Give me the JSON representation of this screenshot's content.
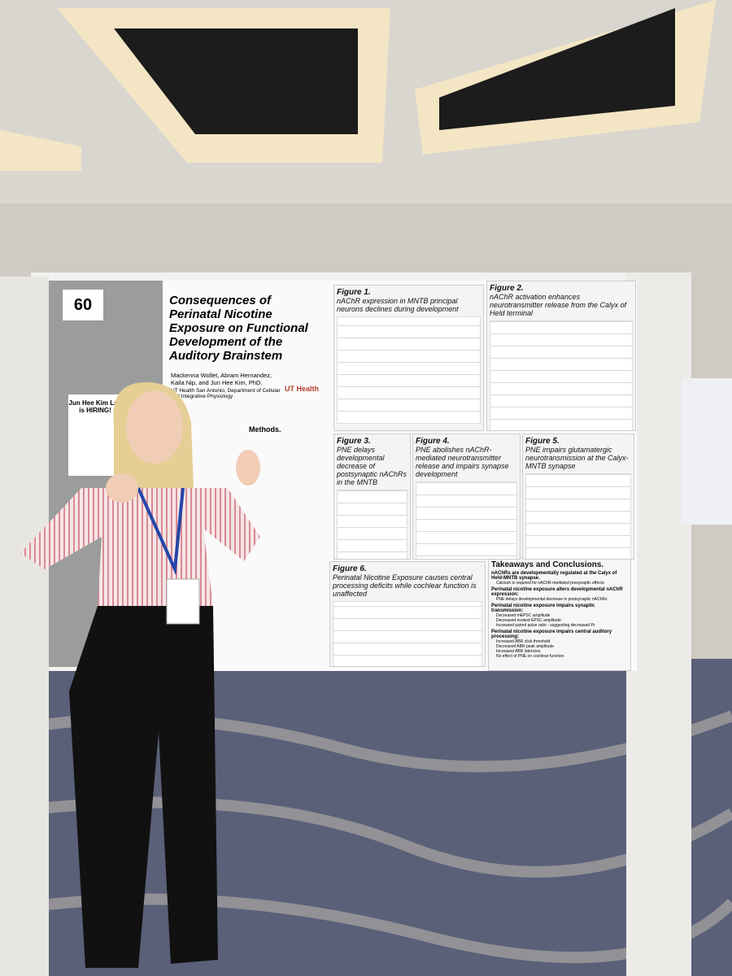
{
  "board_number": "60",
  "side_sign": {
    "line1": "Jun Hee Kim Lab",
    "line2": "is HIRING!"
  },
  "poster": {
    "title": "Consequences of Perinatal Nicotine Exposure on Functional Development of the Auditory Brainstem",
    "authors": "Mackenna Wollet, Abram Hernandez, Kaila Nip, and Jun Hee Kim, PhD.",
    "affiliation": "UT Health San Antonio, Department of Cellular and Integrative Physiology",
    "logo": "UT Health",
    "methods_title": "Methods.",
    "figures": [
      {
        "label": "Figure 1.",
        "caption": "nAChR expression in MNTB principal neurons declines during development"
      },
      {
        "label": "Figure 2.",
        "caption": "nAChR activation enhances neurotransmitter release from the Calyx of Held terminal"
      },
      {
        "label": "Figure 3.",
        "caption": "PNE delays developmental decrease of postsynaptic nAChRs in the MNTB"
      },
      {
        "label": "Figure 4.",
        "caption": "PNE abolishes nAChR-mediated neurotransmitter release and impairs synapse development"
      },
      {
        "label": "Figure 5.",
        "caption": "PNE impairs glutamatergic neurotransmission at the Calyx-MNTB synapse"
      },
      {
        "label": "Figure 6.",
        "caption": "Perinatal Nicotine Exposure causes central processing deficits while cochlear function is unaffected"
      }
    ],
    "takeaways": {
      "title": "Takeaways and Conclusions.",
      "items": [
        {
          "heading": "nAChRs are developmentally regulated at the Calyx of Held-MNTB synapse.",
          "points": [
            "Calcium is required for nAChR-mediated presynaptic effects"
          ]
        },
        {
          "heading": "Perinatal nicotine exposure alters developmental nAChR expression:",
          "points": [
            "PNE delays developmental decrease in postsynaptic nAChRs"
          ]
        },
        {
          "heading": "Perinatal nicotine exposure impairs synaptic transmission:",
          "points": [
            "Decreased mEPSC amplitude",
            "Decreased evoked EPSC amplitude",
            "Increased paired pulse ratio - suggesting decreased Pr"
          ]
        },
        {
          "heading": "Perinatal nicotine exposure impairs central auditory processing:",
          "points": [
            "Increased ABR click threshold",
            "Decreased ABR peak amplitude",
            "Increased ABR latencies",
            "No effect of PNE on cochlear function"
          ]
        }
      ]
    }
  }
}
